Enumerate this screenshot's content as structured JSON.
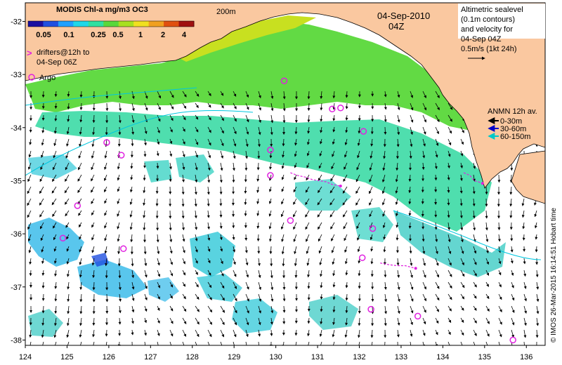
{
  "map": {
    "colorbar_title": "MODIS Chl-a mg/m3 OC3",
    "colorbar_ticks": [
      "0.05",
      "0.1",
      "0.25",
      "0.5",
      "1",
      "2",
      "4"
    ],
    "colorbar_colors": [
      "#1a0fa0",
      "#1f4fe0",
      "#1fa0ff",
      "#1fd8e8",
      "#30e0a0",
      "#5ad83a",
      "#a8e020",
      "#f0e020",
      "#f0a020",
      "#e05010",
      "#a01010"
    ],
    "contour_label": "200m",
    "date": "04-Sep-2010",
    "time": "04Z",
    "altimetry_lines": [
      "Altimetric sealevel",
      "(0.1m contours)",
      "and velocity for",
      "04-Sep 04Z",
      "0.5m/s (1kt 24h)"
    ],
    "drifters_lines": [
      "drifters@12h to",
      "04-Sep 06Z"
    ],
    "argo_label": "Argo",
    "anmn_title": "ANMN 12h av.",
    "anmn_items": [
      {
        "label": "0-30m",
        "color": "#000000"
      },
      {
        "label": "30-60m",
        "color": "#0000c8"
      },
      {
        "label": "60-150m",
        "color": "#00c8c8"
      }
    ],
    "credit": "© IMOS 26-Mar-2015 16:14:51 Hobart time",
    "x_ticks": [
      "124",
      "125",
      "126",
      "127",
      "128",
      "129",
      "130",
      "131",
      "132",
      "133",
      "134",
      "135",
      "136"
    ],
    "y_ticks": [
      "-32",
      "-33",
      "-34",
      "-35",
      "-36",
      "-37",
      "-38"
    ],
    "colors": {
      "land": "#fac8a0",
      "ocean": "#ffffff",
      "argo": "#e020e0",
      "drifter": "#e020e0"
    }
  },
  "argo_floats": [
    {
      "lon": 125.95,
      "lat": -34.28
    },
    {
      "lon": 126.3,
      "lat": -34.52
    },
    {
      "lon": 125.25,
      "lat": -35.47
    },
    {
      "lon": 124.9,
      "lat": -36.08
    },
    {
      "lon": 126.35,
      "lat": -36.28
    },
    {
      "lon": 129.87,
      "lat": -34.42
    },
    {
      "lon": 129.87,
      "lat": -34.9
    },
    {
      "lon": 130.2,
      "lat": -33.12
    },
    {
      "lon": 131.35,
      "lat": -33.65
    },
    {
      "lon": 131.55,
      "lat": -33.63
    },
    {
      "lon": 132.1,
      "lat": -34.07
    },
    {
      "lon": 130.35,
      "lat": -35.75
    },
    {
      "lon": 132.32,
      "lat": -35.9
    },
    {
      "lon": 132.07,
      "lat": -36.45
    },
    {
      "lon": 132.28,
      "lat": -37.42
    },
    {
      "lon": 133.4,
      "lat": -37.55
    },
    {
      "lon": 135.68,
      "lat": -38.0
    }
  ],
  "drifter_tracks": [
    [
      [
        130.35,
        -34.85
      ],
      [
        130.52,
        -34.9
      ],
      [
        130.7,
        -34.93
      ],
      [
        130.88,
        -34.98
      ],
      [
        131.05,
        -35.0
      ],
      [
        131.2,
        -35.02
      ],
      [
        131.35,
        -35.07
      ],
      [
        131.55,
        -35.1
      ]
    ],
    [
      [
        132.5,
        -36.55
      ],
      [
        132.7,
        -36.58
      ],
      [
        132.9,
        -36.6
      ],
      [
        133.1,
        -36.6
      ],
      [
        133.25,
        -36.63
      ],
      [
        133.35,
        -36.65
      ]
    ],
    [
      [
        134.5,
        -34.85
      ],
      [
        134.65,
        -34.9
      ],
      [
        134.75,
        -35.0
      ],
      [
        134.85,
        -35.02
      ],
      [
        134.95,
        -35.05
      ]
    ]
  ]
}
